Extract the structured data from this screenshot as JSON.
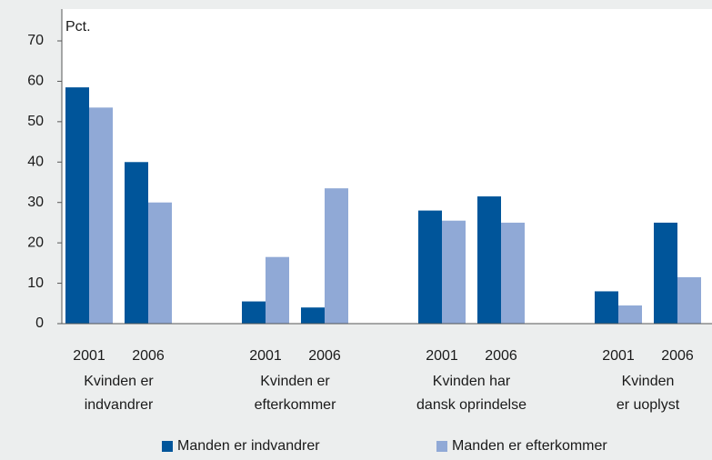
{
  "chart_data": {
    "type": "bar",
    "y_label": "Pct.",
    "categories": [
      "2001",
      "2006",
      "2001",
      "2006",
      "2001",
      "2006",
      "2001",
      "2006"
    ],
    "groups": [
      [
        "Kvinden er",
        "indvandrer"
      ],
      [
        "Kvinden er",
        "efterkommer"
      ],
      [
        "Kvinden har",
        "dansk oprindelse"
      ],
      [
        "Kvinden",
        "er uoplyst"
      ]
    ],
    "series": [
      {
        "name": "Manden er indvandrer",
        "color": "#00559a",
        "values": [
          58.5,
          40,
          5.5,
          4,
          28,
          31.5,
          8,
          25
        ]
      },
      {
        "name": "Manden er efterkommer",
        "color": "#90a9d6",
        "values": [
          53.5,
          30,
          16.5,
          33.5,
          25.5,
          25,
          4.5,
          11.5
        ]
      }
    ],
    "ylim": [
      0,
      70
    ],
    "yticks": [
      0,
      10,
      20,
      30,
      40,
      50,
      60,
      70
    ],
    "legend": "bottom"
  }
}
